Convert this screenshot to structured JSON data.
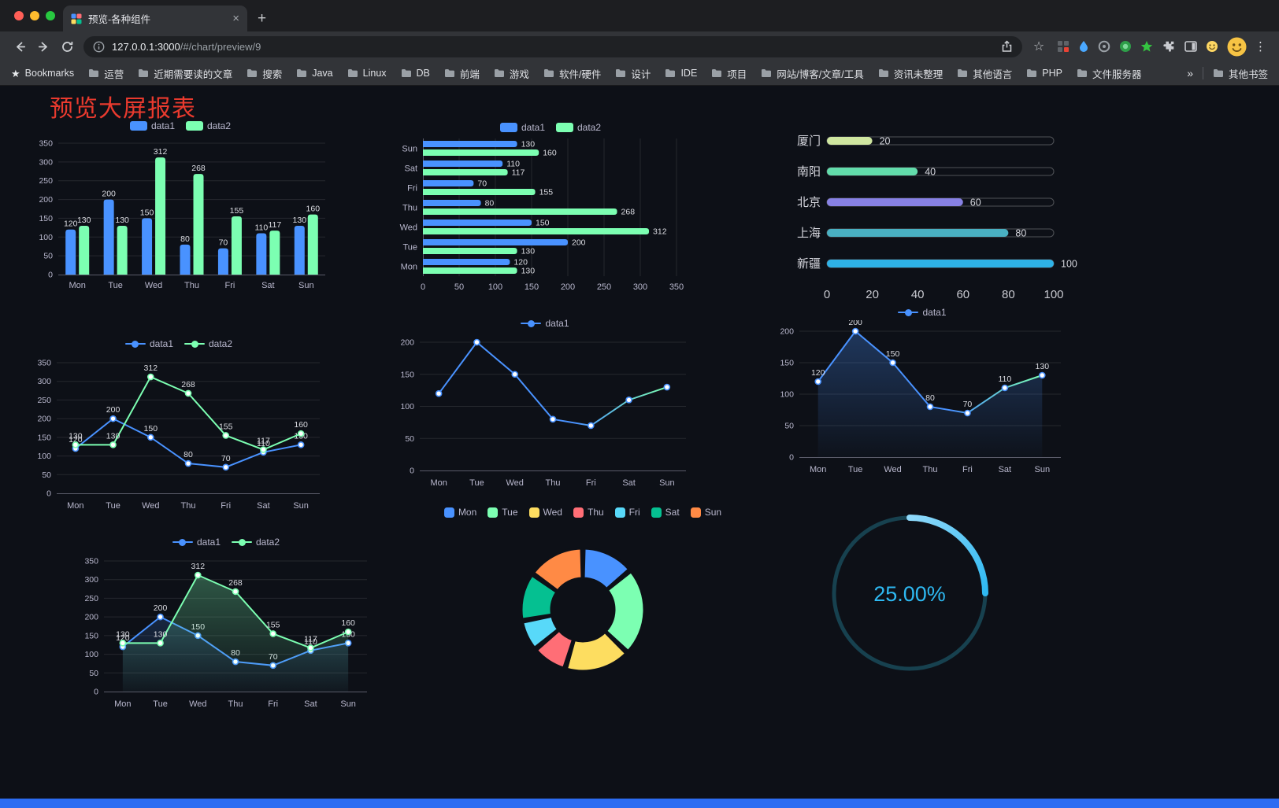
{
  "browser": {
    "tab_title": "预览-各种组件",
    "url_host": "127.0.0.1:3000",
    "url_path": "/#/chart/preview/9",
    "bookmarks_label": "Bookmarks",
    "bookmark_folders": [
      "运营",
      "近期需要读的文章",
      "搜索",
      "Java",
      "Linux",
      "DB",
      "前端",
      "游戏",
      "软件/硬件",
      "设计",
      "IDE",
      "项目",
      "网站/博客/文章/工具",
      "资讯未整理",
      "其他语言",
      "PHP",
      "文件服务器"
    ],
    "other_bookmarks": "其他书签"
  },
  "icons": {
    "close": "×",
    "plus": "+",
    "kebab": "⋮",
    "star": "☆",
    "overflow": "»",
    "bookmarks_star": "★"
  },
  "page": {
    "title": "预览大屏报表"
  },
  "theme": {
    "bg": "#0d1017",
    "axis_text": "#b9b8ce",
    "label_text": "#dbdce2",
    "grid_line": "rgba(255,255,255,0.10)",
    "axis_line": "rgba(185,184,206,0.45)",
    "accent_blue": "#4992ff",
    "accent_green": "#7cffb2",
    "footer_blue": "#2c6cf2",
    "title_red": "#e93a2e"
  },
  "chart_data": [
    {
      "id": "bar",
      "type": "bar",
      "categories": [
        "Mon",
        "Tue",
        "Wed",
        "Thu",
        "Fri",
        "Sat",
        "Sun"
      ],
      "series": [
        {
          "name": "data1",
          "color": "#4992ff",
          "values": [
            120,
            200,
            150,
            80,
            70,
            110,
            130
          ]
        },
        {
          "name": "data2",
          "color": "#7cffb2",
          "values": [
            130,
            130,
            312,
            268,
            155,
            117,
            160
          ]
        }
      ],
      "ylim": [
        0,
        350
      ],
      "yticks": [
        0,
        50,
        100,
        150,
        200,
        250,
        300,
        350
      ],
      "legend": {
        "type": "roundrect",
        "items": [
          {
            "label": "data1",
            "color": "#4992ff"
          },
          {
            "label": "data2",
            "color": "#7cffb2"
          }
        ]
      }
    },
    {
      "id": "hbar",
      "type": "hbar",
      "categories": [
        "Mon",
        "Tue",
        "Wed",
        "Thu",
        "Fri",
        "Sat",
        "Sun"
      ],
      "series": [
        {
          "name": "data1",
          "color": "#4992ff",
          "values": [
            120,
            200,
            150,
            80,
            70,
            110,
            130
          ]
        },
        {
          "name": "data2",
          "color": "#7cffb2",
          "values": [
            130,
            130,
            312,
            268,
            155,
            117,
            160
          ]
        }
      ],
      "xlim": [
        0,
        350
      ],
      "xticks": [
        0,
        50,
        100,
        150,
        200,
        250,
        300,
        350
      ],
      "legend": {
        "type": "roundrect",
        "items": [
          {
            "label": "data1",
            "color": "#4992ff"
          },
          {
            "label": "data2",
            "color": "#7cffb2"
          }
        ]
      }
    },
    {
      "id": "progress",
      "type": "progress-bars",
      "max": 100,
      "xticks": [
        0,
        20,
        40,
        60,
        80,
        100
      ],
      "rows": [
        {
          "label": "厦门",
          "value": 20,
          "color": "#cfe6a0"
        },
        {
          "label": "南阳",
          "value": 40,
          "color": "#62dcab"
        },
        {
          "label": "北京",
          "value": 60,
          "color": "#8781e4"
        },
        {
          "label": "上海",
          "value": 80,
          "color": "#49b0c2"
        },
        {
          "label": "新疆",
          "value": 100,
          "color": "#2eb2e7"
        }
      ]
    },
    {
      "id": "line_dual",
      "type": "line",
      "labels": true,
      "categories": [
        "Mon",
        "Tue",
        "Wed",
        "Thu",
        "Fri",
        "Sat",
        "Sun"
      ],
      "series": [
        {
          "name": "data1",
          "color": "#4992ff",
          "values": [
            120,
            200,
            150,
            80,
            70,
            110,
            130
          ]
        },
        {
          "name": "data2",
          "color": "#7cffb2",
          "values": [
            130,
            130,
            312,
            268,
            155,
            117,
            160
          ]
        }
      ],
      "ylim": [
        0,
        350
      ],
      "yticks": [
        0,
        50,
        100,
        150,
        200,
        250,
        300,
        350
      ],
      "legend": {
        "type": "line",
        "items": [
          {
            "label": "data1",
            "color": "#4992ff"
          },
          {
            "label": "data2",
            "color": "#7cffb2"
          }
        ]
      }
    },
    {
      "id": "line_single",
      "type": "line",
      "labels": false,
      "categories": [
        "Mon",
        "Tue",
        "Wed",
        "Thu",
        "Fri",
        "Sat",
        "Sun"
      ],
      "series": [
        {
          "name": "data1",
          "color": "#4992ff",
          "color2": "#7cffb2",
          "values": [
            120,
            200,
            150,
            80,
            70,
            110,
            130
          ]
        }
      ],
      "ylim": [
        0,
        200
      ],
      "yticks": [
        0,
        50,
        100,
        150,
        200
      ],
      "legend": {
        "type": "line",
        "items": [
          {
            "label": "data1",
            "color": "#4992ff"
          }
        ]
      }
    },
    {
      "id": "area_single",
      "type": "line",
      "labels": true,
      "categories": [
        "Mon",
        "Tue",
        "Wed",
        "Thu",
        "Fri",
        "Sat",
        "Sun"
      ],
      "series": [
        {
          "name": "data1",
          "color": "#4992ff",
          "color2": "#7cffb2",
          "area": true,
          "area_opacity": 0.3,
          "values": [
            120,
            200,
            150,
            80,
            70,
            110,
            130
          ]
        }
      ],
      "ylim": [
        0,
        200
      ],
      "yticks": [
        0,
        50,
        100,
        150,
        200
      ],
      "legend": {
        "type": "line",
        "items": [
          {
            "label": "data1",
            "color": "#4992ff"
          }
        ]
      }
    },
    {
      "id": "area_dual",
      "type": "line",
      "labels": true,
      "categories": [
        "Mon",
        "Tue",
        "Wed",
        "Thu",
        "Fri",
        "Sat",
        "Sun"
      ],
      "series": [
        {
          "name": "data1",
          "color": "#4992ff",
          "area": true,
          "area_opacity": 0.18,
          "values": [
            120,
            200,
            150,
            80,
            70,
            110,
            130
          ]
        },
        {
          "name": "data2",
          "color": "#7cffb2",
          "area": true,
          "area_opacity": 0.3,
          "values": [
            130,
            130,
            312,
            268,
            155,
            117,
            160
          ]
        }
      ],
      "ylim": [
        0,
        350
      ],
      "yticks": [
        0,
        50,
        100,
        150,
        200,
        250,
        300,
        350
      ],
      "legend": {
        "type": "line",
        "items": [
          {
            "label": "data1",
            "color": "#4992ff"
          },
          {
            "label": "data2",
            "color": "#7cffb2"
          }
        ]
      }
    },
    {
      "id": "donut",
      "type": "donut",
      "categories": [
        "Mon",
        "Tue",
        "Wed",
        "Thu",
        "Fri",
        "Sat",
        "Sun"
      ],
      "values": [
        120,
        200,
        150,
        80,
        70,
        110,
        130
      ],
      "colors": [
        "#4992ff",
        "#7cffb2",
        "#fddd60",
        "#ff6e76",
        "#58d9f9",
        "#05c091",
        "#ff8a45"
      ],
      "legend": {
        "type": "square",
        "items": [
          {
            "label": "Mon",
            "color": "#4992ff"
          },
          {
            "label": "Tue",
            "color": "#7cffb2"
          },
          {
            "label": "Wed",
            "color": "#fddd60"
          },
          {
            "label": "Thu",
            "color": "#ff6e76"
          },
          {
            "label": "Fri",
            "color": "#58d9f9"
          },
          {
            "label": "Sat",
            "color": "#05c091"
          },
          {
            "label": "Sun",
            "color": "#ff8a45"
          }
        ]
      }
    },
    {
      "id": "gauge",
      "type": "gauge",
      "value": 25,
      "display": "25.00%",
      "color": "#2eb9f2",
      "color_light": "#8fd9fa",
      "track_color": "#17414f"
    }
  ]
}
